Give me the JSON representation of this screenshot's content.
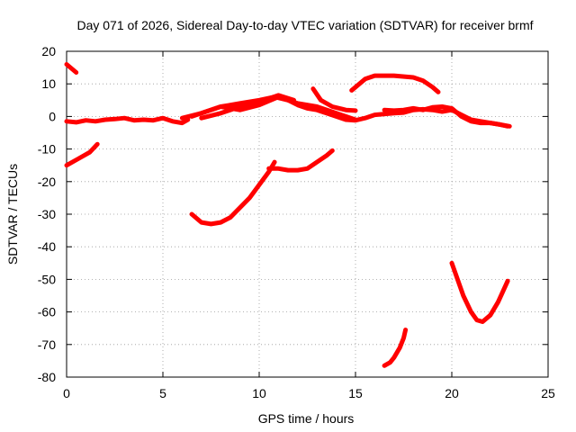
{
  "chart_data": {
    "type": "line",
    "title": "Day 071 of 2026, Sidereal Day-to-day VTEC variation (SDTVAR) for receiver brmf",
    "xlabel": "GPS time / hours",
    "ylabel": "SDTVAR / TECUs",
    "xlim": [
      0,
      25
    ],
    "ylim": [
      -80,
      20
    ],
    "xticks": [
      "0",
      "5",
      "10",
      "15",
      "20",
      "25"
    ],
    "yticks": [
      "20",
      "10",
      "0",
      "-10",
      "-20",
      "-30",
      "-40",
      "-50",
      "-60",
      "-70",
      "-80"
    ],
    "grid": true,
    "color": "#ff0000",
    "series": [
      {
        "name": "segment-1",
        "x": [
          0.0,
          0.5
        ],
        "y": [
          16,
          13.5
        ]
      },
      {
        "name": "segment-2",
        "x": [
          0.0,
          0.6,
          1.2,
          1.6
        ],
        "y": [
          -15,
          -13,
          -11,
          -8.5
        ]
      },
      {
        "name": "segment-3",
        "x": [
          0.0,
          0.5,
          1.0,
          1.5,
          2.0,
          2.5,
          3.0,
          3.5,
          4.0,
          4.5,
          5.0,
          5.5,
          6.0,
          6.3
        ],
        "y": [
          -1.5,
          -1.8,
          -1.2,
          -1.5,
          -1.0,
          -0.8,
          -0.5,
          -1.2,
          -1.0,
          -1.2,
          -0.5,
          -1.5,
          -2.0,
          -1.0
        ]
      },
      {
        "name": "segment-4",
        "x": [
          6.0,
          7.0,
          8.0,
          9.0,
          10.0,
          10.8,
          11.5,
          12.0,
          12.5,
          13.0,
          13.5,
          14.0,
          14.5,
          15.0,
          15.5,
          16.0,
          17.0,
          17.5,
          18.0,
          18.5,
          19.0,
          19.5,
          20.0,
          20.5,
          21.0,
          21.5,
          22.0,
          22.5,
          22.9
        ],
        "y": [
          -0.5,
          1.0,
          3.0,
          4.0,
          5.0,
          6.0,
          5.0,
          3.5,
          2.5,
          2.0,
          1.0,
          0.0,
          -1.0,
          -1.2,
          -0.5,
          0.5,
          1.0,
          1.2,
          2.0,
          2.2,
          2.0,
          1.5,
          2.0,
          0.5,
          -1.0,
          -1.5,
          -2.0,
          -2.5,
          -3.0
        ]
      },
      {
        "name": "segment-5",
        "x": [
          6.5,
          8.0,
          9.0,
          10.0,
          11.0,
          12.0,
          13.0,
          14.0,
          15.0
        ],
        "y": [
          0.0,
          3.0,
          2.0,
          3.5,
          6.0,
          4.0,
          3.0,
          1.0,
          -1.0
        ]
      },
      {
        "name": "segment-6",
        "x": [
          7.0,
          8.0,
          9.0,
          10.0,
          11.0,
          11.8
        ],
        "y": [
          -0.5,
          1.0,
          3.0,
          4.5,
          6.5,
          5.0
        ]
      },
      {
        "name": "segment-7",
        "x": [
          16.5,
          17.0,
          17.5,
          18.0,
          18.5,
          19.0,
          19.5,
          20.0,
          20.5,
          21.0,
          21.5,
          22.0,
          22.5,
          23.0
        ],
        "y": [
          2.0,
          1.8,
          2.0,
          2.5,
          2.0,
          2.8,
          3.0,
          2.5,
          0.0,
          -1.5,
          -2.0,
          -2.0,
          -2.5,
          -3.0
        ]
      },
      {
        "name": "segment-8",
        "x": [
          12.8,
          13.2,
          13.8,
          14.5,
          15.0
        ],
        "y": [
          8.5,
          5.0,
          3.0,
          2.0,
          1.8
        ]
      },
      {
        "name": "segment-9",
        "x": [
          14.8,
          15.5,
          16.0,
          17.0,
          18.0,
          18.5,
          19.0,
          19.3
        ],
        "y": [
          8.0,
          11.5,
          12.5,
          12.5,
          12.0,
          11.0,
          9.0,
          7.5
        ]
      },
      {
        "name": "segment-10",
        "x": [
          6.5,
          7.0,
          7.5,
          8.0,
          8.5,
          9.0,
          9.5,
          10.0,
          10.5,
          10.8
        ],
        "y": [
          -30,
          -32.5,
          -33,
          -32.5,
          -31,
          -28,
          -25,
          -21,
          -17,
          -14
        ]
      },
      {
        "name": "segment-11",
        "x": [
          10.5,
          11.0,
          11.5,
          12.0,
          12.5,
          13.0,
          13.5,
          13.8
        ],
        "y": [
          -16,
          -16,
          -16.5,
          -16.5,
          -16,
          -14,
          -12,
          -10.5
        ]
      },
      {
        "name": "segment-12",
        "x": [
          16.5,
          16.8,
          17.0,
          17.3,
          17.5,
          17.6
        ],
        "y": [
          -76.5,
          -75.5,
          -74,
          -71,
          -68,
          -65.5
        ]
      },
      {
        "name": "segment-13",
        "x": [
          20.0,
          20.3,
          20.6,
          21.0,
          21.3,
          21.6,
          22.0,
          22.4,
          22.9
        ],
        "y": [
          -45,
          -50,
          -55,
          -60,
          -62.5,
          -63,
          -61,
          -57,
          -50.5
        ]
      }
    ]
  }
}
